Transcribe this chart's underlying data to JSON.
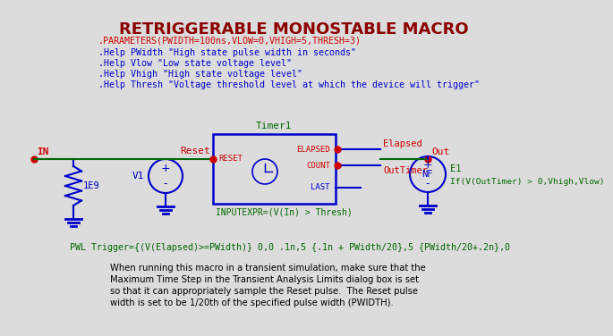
{
  "title": "RETRIGGERABLE MONOSTABLE MACRO",
  "title_color": "#8B0000",
  "title_fontsize": 13,
  "bg_color": "#DCDCDC",
  "params_line": ".PARAMETERS(PWIDTH=100ns,VLOW=0,VHIGH=5,THRESH=3)",
  "params_color": "#CC0000",
  "help_lines": [
    ".Help PWidth \"High state pulse width in seconds\"",
    ".Help Vlow \"Low state voltage level\"",
    ".Help Vhigh \"High state voltage level\"",
    ".Help Thresh \"Voltage threshold level at which the device will trigger\""
  ],
  "help_color": "#0000CC",
  "pwl_line": "PWL Trigger={(V(Elapsed)>=PWidth)} 0,0 .1n,5 {.1n + PWidth/20},5 {PWidth/20+.2n},0",
  "pwl_color": "#006600",
  "note_lines": [
    "When running this macro in a transient simulation, make sure that the",
    "Maximum Time Step in the Transient Analysis Limits dialog box is set",
    "so that it can appropriately sample the Reset pulse.  The Reset pulse",
    "width is set to be 1/20th of the specified pulse width (PWIDTH)."
  ],
  "note_color": "#000000",
  "timer_label": "Timer1",
  "timer_color": "#006600",
  "elapsed_label": "Elapsed",
  "out_timer_label": "OutTimer",
  "reset_label": "Reset",
  "in_label": "IN",
  "out_label": "Out",
  "v1_label": "V1",
  "e1_label": "E1",
  "r1_label": "1E9",
  "inputexpr": "INPUTEXPR=(V(In) > Thresh)",
  "e1_expr": "If(V(OutTimer) > 0,Vhigh,Vlow)",
  "elapsed_port": "ELAPSED",
  "count_port": "COUNT",
  "last_port": "LAST",
  "reset_port": "RESET",
  "red_color": "#CC0000",
  "blue_color": "#0000CC",
  "green_color": "#006600",
  "wire_color": "#006600",
  "component_color": "#0000CC"
}
